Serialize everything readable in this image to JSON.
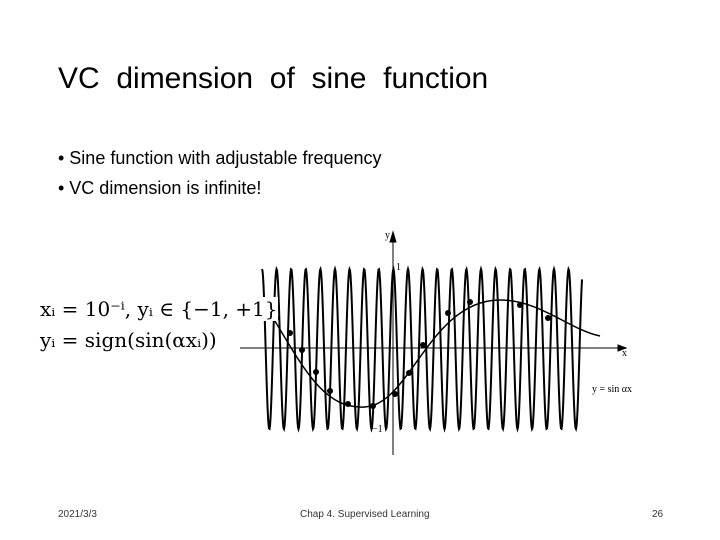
{
  "slide": {
    "title": "VC  dimension  of  sine  function",
    "bullets": [
      "• Sine function with adjustable frequency",
      "• VC dimension is infinite!"
    ],
    "formulas": [
      "xᵢ = 10⁻ⁱ, yᵢ ∈ {−1, +1}",
      "yᵢ = sign(sin(αxᵢ))"
    ],
    "figure": {
      "y_axis_label": "y",
      "x_axis_label": "x",
      "top_mark": "1",
      "bottom_mark": "−1",
      "curve_label": "y = sin αx"
    },
    "footer": {
      "date": "2021/3/3",
      "center": "Chap 4. Supervised Learning",
      "page": "26"
    }
  }
}
